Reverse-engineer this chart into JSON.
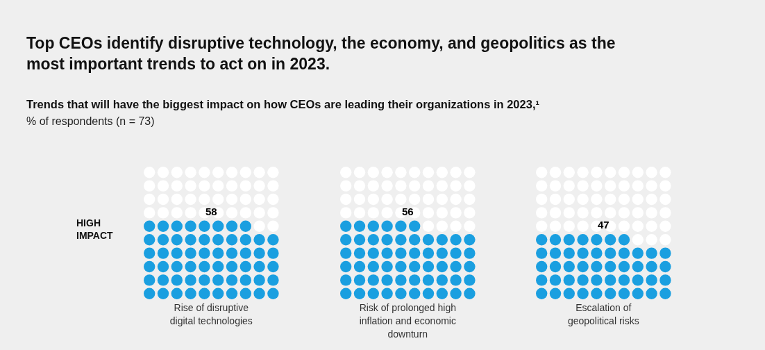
{
  "chart_data": {
    "type": "other",
    "title": "Top CEOs identify disruptive technology, the economy, and geopolitics as the most important trends to act on in 2023.",
    "subtitle": "Trends that will have the biggest impact on how CEOs are leading their organizations in 2023,¹",
    "annotations": [
      "% of respondents (n = 73)"
    ],
    "ylabel": "HIGH IMPACT",
    "categories": [
      "Rise of disruptive digital technologies",
      "Risk of prolonged high inflation and economic downturn",
      "Escalation of geopolitical risks"
    ],
    "values": [
      58,
      56,
      47
    ],
    "color": "#1a9fe0",
    "data_labels": true
  }
}
